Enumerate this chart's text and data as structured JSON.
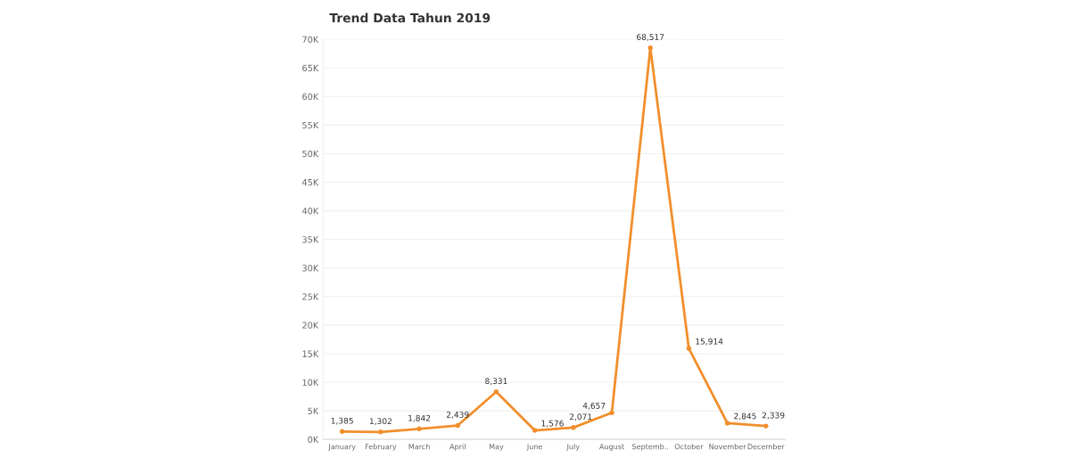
{
  "chart_data": {
    "type": "line",
    "title": "Trend Data Tahun 2019",
    "categories": [
      "January",
      "February",
      "March",
      "April",
      "May",
      "June",
      "July",
      "August",
      "Septemb..",
      "October",
      "November",
      "December"
    ],
    "series": [
      {
        "color": "#f28e2b",
        "values": [
          1385,
          1302,
          1842,
          2439,
          8331,
          1576,
          2071,
          4657,
          68517,
          15914,
          2845,
          2339
        ],
        "value_labels": [
          "1,385",
          "1,302",
          "1,842",
          "2,439",
          "8,331",
          "1,576",
          "2,071",
          "4,657",
          "68,517",
          "15,914",
          "2,845",
          "2,339"
        ]
      }
    ],
    "ylim": [
      0,
      70000
    ],
    "yticks": [
      {
        "value": 0,
        "label": "0K"
      },
      {
        "value": 5000,
        "label": "5K"
      },
      {
        "value": 10000,
        "label": "10K"
      },
      {
        "value": 15000,
        "label": "15K"
      },
      {
        "value": 20000,
        "label": "20K"
      },
      {
        "value": 25000,
        "label": "25K"
      },
      {
        "value": 30000,
        "label": "30K"
      },
      {
        "value": 35000,
        "label": "35K"
      },
      {
        "value": 40000,
        "label": "40K"
      },
      {
        "value": 45000,
        "label": "45K"
      },
      {
        "value": 50000,
        "label": "50K"
      },
      {
        "value": 55000,
        "label": "55K"
      },
      {
        "value": 60000,
        "label": "60K"
      },
      {
        "value": 65000,
        "label": "65K"
      },
      {
        "value": 70000,
        "label": "70K"
      }
    ],
    "grid": "y",
    "marker": "circle",
    "legend": false
  }
}
